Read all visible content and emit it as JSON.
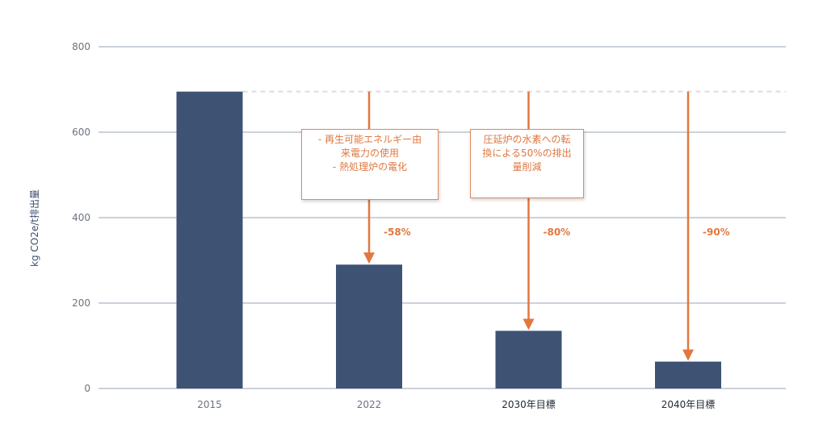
{
  "chart_data": {
    "type": "bar",
    "ylabel": "kg CO2e/t排出量",
    "ylim": [
      0,
      800
    ],
    "yticks": [
      0,
      200,
      400,
      600,
      800
    ],
    "categories": [
      "2015",
      "2022",
      "2030年目標",
      "2040年目標"
    ],
    "values": [
      695,
      290,
      135,
      63
    ],
    "baseline_value": 695,
    "reductions": [
      "",
      "-58%",
      "-80%",
      "-90%"
    ],
    "annotations": [
      {
        "category": "2022",
        "lines": [
          "- 再生可能エネルギー由",
          "来電力の使用",
          "- 熱処理炉の電化"
        ]
      },
      {
        "category": "2030年目標",
        "lines": [
          "圧延炉の水素への転",
          "換による50%の排出",
          "量削減"
        ]
      }
    ],
    "grid": true,
    "legend": "none"
  },
  "colors": {
    "bar": "#3e5374",
    "arrow": "#e0783f",
    "grid": "#9aa4b5",
    "baseline_dash": "#d9dde3"
  }
}
